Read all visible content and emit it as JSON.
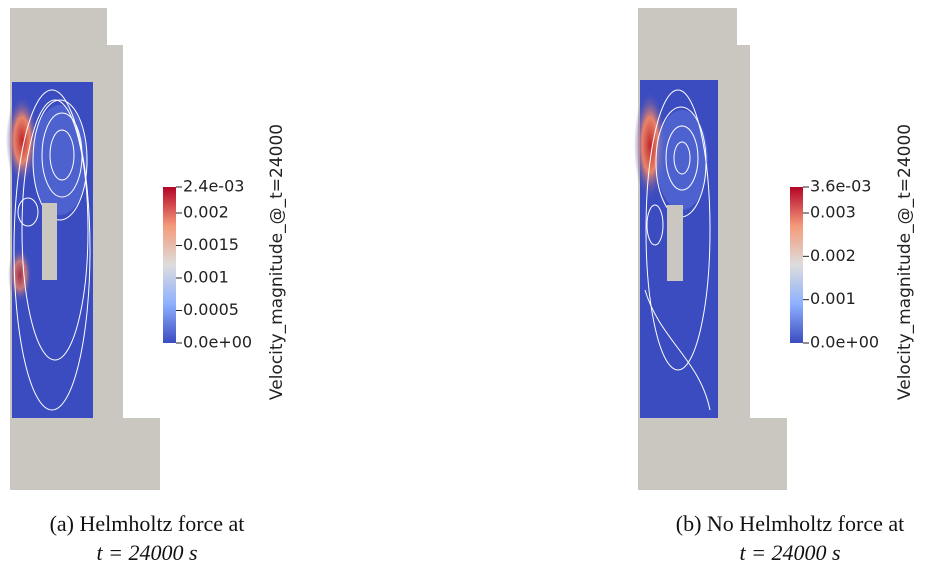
{
  "panels": [
    {
      "colorbar": {
        "title": "Velocity_magnitude_@_t=24000",
        "range": [
          0,
          0.0024
        ],
        "ticks": [
          {
            "value": 0.0024,
            "label": "2.4e-03"
          },
          0.002,
          0.0015,
          0.001,
          0.0005,
          {
            "value": 0,
            "label": "0.0e+00"
          }
        ]
      },
      "caption": [
        "(a) Helmholtz force at",
        "t = 24000 s"
      ]
    },
    {
      "colorbar": {
        "title": "Velocity_magnitude_@_t=24000",
        "range": [
          0,
          0.0036
        ],
        "ticks": [
          {
            "value": 0.0036,
            "label": "3.6e-03"
          },
          0.003,
          0.002,
          0.001,
          {
            "value": 0,
            "label": "0.0e+00"
          }
        ]
      },
      "caption": [
        "(b) No Helmholtz force at",
        "t = 24000 s"
      ]
    }
  ]
}
